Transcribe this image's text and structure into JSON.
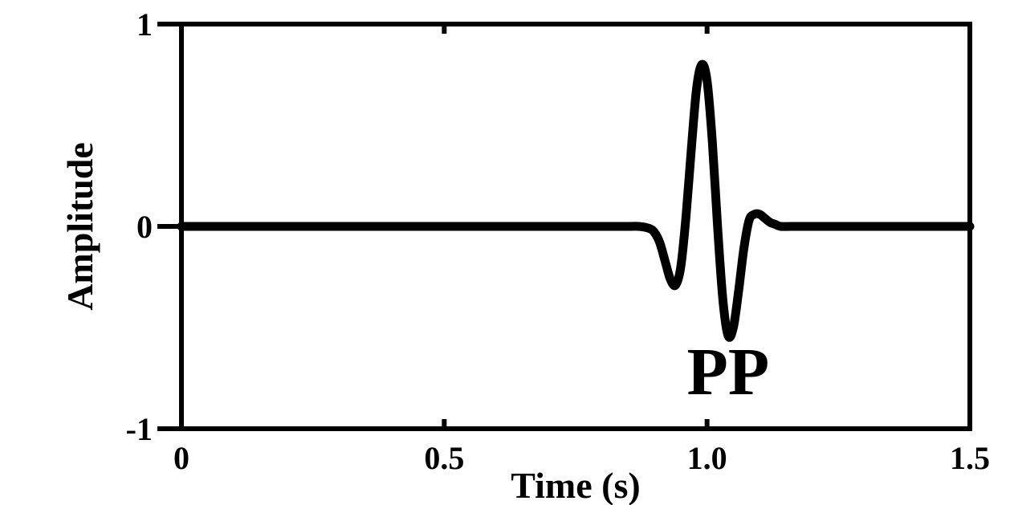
{
  "chart_data": {
    "type": "line",
    "title": "",
    "xlabel": "Time (s)",
    "ylabel": "Amplitude",
    "xlim": [
      0,
      1.5
    ],
    "ylim": [
      -1,
      1
    ],
    "x_ticks": [
      0,
      0.5,
      1.0,
      1.5
    ],
    "x_tick_labels": [
      "0",
      "0.5",
      "1.0",
      "1.5"
    ],
    "y_ticks": [
      1,
      0,
      -1
    ],
    "y_tick_labels": [
      "1",
      "0",
      "-1"
    ],
    "grid": false,
    "line_color": "#000000",
    "series": [
      {
        "x": [
          0,
          0.1,
          0.2,
          0.3,
          0.4,
          0.5,
          0.6,
          0.7,
          0.8,
          0.85,
          0.87,
          0.89,
          0.9,
          0.91,
          0.92,
          0.93,
          0.94,
          0.95,
          0.96,
          0.97,
          0.98,
          0.99,
          1.0,
          1.01,
          1.02,
          1.03,
          1.04,
          1.05,
          1.06,
          1.07,
          1.08,
          1.09,
          1.1,
          1.11,
          1.12,
          1.13,
          1.14,
          1.16,
          1.2,
          1.3,
          1.4,
          1.5
        ],
        "y": [
          0,
          0,
          0,
          0,
          0,
          0,
          0,
          0,
          0,
          0,
          0,
          -0.01,
          -0.03,
          -0.08,
          -0.17,
          -0.26,
          -0.29,
          -0.2,
          0.05,
          0.38,
          0.68,
          0.8,
          0.72,
          0.42,
          0.0,
          -0.36,
          -0.54,
          -0.5,
          -0.32,
          -0.11,
          0.03,
          0.06,
          0.06,
          0.04,
          0.02,
          0.01,
          0.0,
          0,
          0,
          0,
          0,
          0
        ]
      }
    ],
    "annotations": [
      {
        "text": "PP",
        "x": 1.04,
        "y": -0.71
      }
    ]
  }
}
